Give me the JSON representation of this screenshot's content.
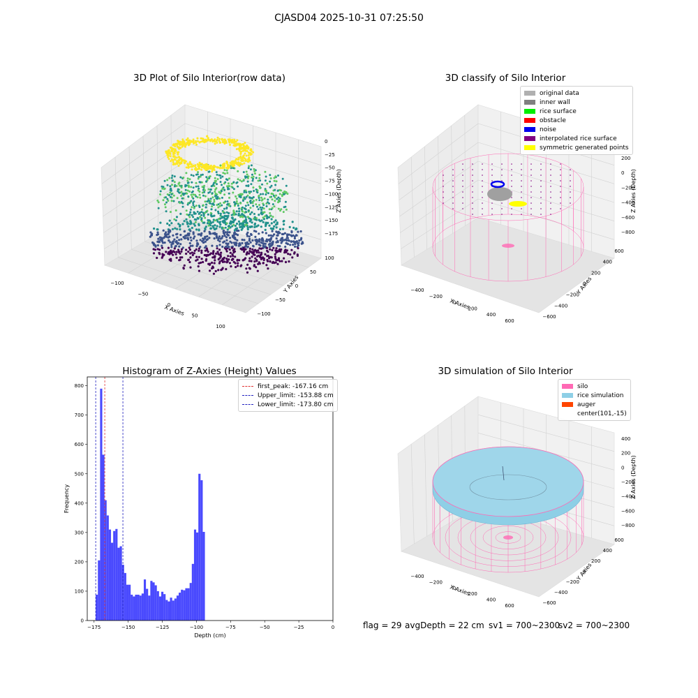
{
  "figure": {
    "suptitle": "CJASD04 2025-10-31 07:25:50"
  },
  "footer": {
    "flag": "flag = 29",
    "avg_depth": "avgDepth = 22 cm",
    "sv1": "sv1 = 700~2300",
    "sv2": "sv2 = 700~2300"
  },
  "colors": {
    "histogram_bars": "#4a4afe",
    "first_peak_line": "#e03030",
    "limit_lines": "#2020c0",
    "silo_wire": "#ff69b4",
    "rice_sim": "#8ecfe6",
    "auger": "#ff4500"
  },
  "chart_data": [
    {
      "type": "scatter3d",
      "title": "3D Plot of Silo Interior(row data)",
      "xlabel": "X Axies",
      "ylabel": "Y Axies",
      "zlabel": "Z Axies (Depth)",
      "xticks": [
        "−100",
        "−50",
        "0",
        "50",
        "100"
      ],
      "yticks": [
        "−100",
        "−50",
        "0",
        "50",
        "100"
      ],
      "zticks": [
        "0",
        "−25",
        "−50",
        "−75",
        "−100",
        "−125",
        "−150",
        "−175"
      ],
      "zlim": [
        -175,
        0
      ],
      "colormap": "viridis"
    },
    {
      "type": "scatter3d",
      "title": "3D classify of Silo Interior",
      "xlabel": "X Axies",
      "ylabel": "Y Axies",
      "zlabel": "Z Axies (Depth)",
      "xticks": [
        "−400",
        "−200",
        "0",
        "200",
        "400",
        "600"
      ],
      "yticks": [
        "−600",
        "−400",
        "−200",
        "0",
        "200",
        "400",
        "600"
      ],
      "zticks": [
        "200",
        "0",
        "−200",
        "−400",
        "−600",
        "−800"
      ],
      "legend": [
        {
          "label": "original data",
          "color": "#b0b0b0"
        },
        {
          "label": "inner wall",
          "color": "#808080"
        },
        {
          "label": "rice surface",
          "color": "#00ee00"
        },
        {
          "label": "obstacle",
          "color": "#ff0000"
        },
        {
          "label": "noise",
          "color": "#0000ee"
        },
        {
          "label": "interpolated rice surface",
          "color": "#800080"
        },
        {
          "label": "symmetric generated points",
          "color": "#ffff00"
        }
      ]
    },
    {
      "type": "bar",
      "title": "Histogram of Z-Axies (Height) Values",
      "xlabel": "Depth (cm)",
      "ylabel": "Frequency",
      "xlim": [
        -180,
        0
      ],
      "ylim": [
        0,
        830
      ],
      "xticks": [
        -175,
        -150,
        -125,
        -100,
        -75,
        -50,
        -25,
        0
      ],
      "yticks": [
        0,
        100,
        200,
        300,
        400,
        500,
        600,
        700,
        800
      ],
      "bin_start": -173.8,
      "bin_width": 1.6,
      "values": [
        88,
        205,
        790,
        565,
        410,
        358,
        310,
        265,
        305,
        312,
        248,
        253,
        190,
        162,
        122,
        122,
        88,
        82,
        88,
        88,
        85,
        92,
        140,
        108,
        85,
        135,
        130,
        120,
        100,
        82,
        98,
        90,
        70,
        65,
        78,
        68,
        75,
        85,
        95,
        105,
        103,
        110,
        110,
        128,
        193,
        310,
        300,
        500,
        478,
        302
      ],
      "vlines": [
        {
          "label": "first_peak: -167.16 cm",
          "x": -167.16,
          "color": "#e03030"
        },
        {
          "label": "Upper_limit: -153.88 cm",
          "x": -153.88,
          "color": "#2020c0"
        },
        {
          "label": "Lower_limit: -173.80 cm",
          "x": -173.8,
          "color": "#2020c0"
        }
      ]
    },
    {
      "type": "surface3d",
      "title": "3D simulation of Silo Interior",
      "xlabel": "X Axies",
      "ylabel": "Y Axies",
      "zlabel": "Z Axies (Depth)",
      "xticks": [
        "−400",
        "−200",
        "0",
        "200",
        "400",
        "600"
      ],
      "yticks": [
        "−600",
        "−400",
        "−200",
        "0",
        "200",
        "400",
        "600"
      ],
      "zticks": [
        "400",
        "200",
        "0",
        "−200",
        "−400",
        "−600",
        "−800"
      ],
      "legend": [
        {
          "label": "silo",
          "color": "#ff69b4"
        },
        {
          "label": "rice simulation",
          "color": "#8ecfe6"
        },
        {
          "label": "auger",
          "color": "#ff4500"
        },
        {
          "label": "center(101,-15)",
          "color": ""
        }
      ]
    }
  ]
}
